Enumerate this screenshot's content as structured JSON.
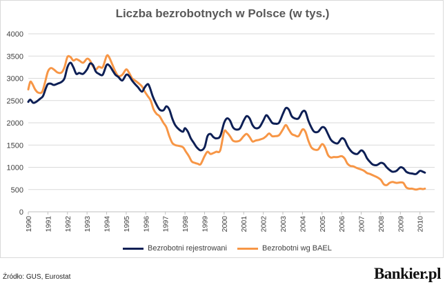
{
  "chart_data": {
    "type": "line",
    "title": "Liczba bezrobotnych w Polsce (w tys.)",
    "xlabel": "",
    "ylabel": "",
    "xlim": [
      1990,
      2010.75
    ],
    "ylim": [
      0,
      4000
    ],
    "y_ticks": [
      "0",
      "500",
      "1000",
      "1500",
      "2000",
      "2500",
      "3000",
      "3500",
      "4000"
    ],
    "x_ticks": [
      "1990",
      "1991",
      "1992",
      "1993",
      "1994",
      "1995",
      "1996",
      "1997",
      "1998",
      "1999",
      "2000",
      "2001",
      "2002",
      "2003",
      "2004",
      "2005",
      "2006",
      "2007",
      "2008",
      "2009",
      "2010"
    ],
    "grid": true,
    "legend_position": "bottom",
    "series": [
      {
        "name": "Bezrobotni rejestrowani",
        "color": "#0d1f55",
        "points": [
          [
            1990.0,
            2470
          ],
          [
            1990.1,
            2520
          ],
          [
            1990.25,
            2450
          ],
          [
            1990.4,
            2470
          ],
          [
            1990.6,
            2540
          ],
          [
            1990.75,
            2600
          ],
          [
            1990.9,
            2780
          ],
          [
            1991.0,
            2870
          ],
          [
            1991.15,
            2880
          ],
          [
            1991.3,
            2850
          ],
          [
            1991.5,
            2880
          ],
          [
            1991.7,
            2920
          ],
          [
            1991.85,
            3000
          ],
          [
            1992.0,
            3250
          ],
          [
            1992.15,
            3350
          ],
          [
            1992.3,
            3250
          ],
          [
            1992.45,
            3100
          ],
          [
            1992.6,
            3120
          ],
          [
            1992.8,
            3100
          ],
          [
            1993.0,
            3200
          ],
          [
            1993.15,
            3330
          ],
          [
            1993.3,
            3300
          ],
          [
            1993.45,
            3150
          ],
          [
            1993.6,
            3100
          ],
          [
            1993.8,
            3080
          ],
          [
            1994.0,
            3300
          ],
          [
            1994.15,
            3280
          ],
          [
            1994.3,
            3180
          ],
          [
            1994.45,
            3080
          ],
          [
            1994.6,
            3030
          ],
          [
            1994.8,
            2950
          ],
          [
            1995.0,
            3080
          ],
          [
            1995.15,
            3050
          ],
          [
            1995.3,
            2950
          ],
          [
            1995.45,
            2870
          ],
          [
            1995.6,
            2800
          ],
          [
            1995.8,
            2700
          ],
          [
            1995.95,
            2800
          ],
          [
            1996.1,
            2870
          ],
          [
            1996.2,
            2800
          ],
          [
            1996.35,
            2600
          ],
          [
            1996.5,
            2450
          ],
          [
            1996.7,
            2300
          ],
          [
            1996.9,
            2280
          ],
          [
            1997.05,
            2370
          ],
          [
            1997.2,
            2300
          ],
          [
            1997.35,
            2100
          ],
          [
            1997.5,
            1950
          ],
          [
            1997.7,
            1850
          ],
          [
            1997.9,
            1800
          ],
          [
            1998.0,
            1880
          ],
          [
            1998.15,
            1800
          ],
          [
            1998.3,
            1650
          ],
          [
            1998.45,
            1550
          ],
          [
            1998.6,
            1450
          ],
          [
            1998.8,
            1380
          ],
          [
            1999.0,
            1450
          ],
          [
            1999.15,
            1700
          ],
          [
            1999.3,
            1750
          ],
          [
            1999.45,
            1680
          ],
          [
            1999.6,
            1650
          ],
          [
            1999.8,
            1700
          ],
          [
            2000.0,
            2000
          ],
          [
            2000.15,
            2100
          ],
          [
            2000.3,
            2050
          ],
          [
            2000.45,
            1900
          ],
          [
            2000.6,
            1850
          ],
          [
            2000.8,
            1870
          ],
          [
            2001.0,
            2050
          ],
          [
            2001.15,
            2150
          ],
          [
            2001.3,
            2100
          ],
          [
            2001.45,
            1950
          ],
          [
            2001.6,
            1880
          ],
          [
            2001.8,
            1900
          ],
          [
            2002.0,
            2050
          ],
          [
            2002.15,
            2170
          ],
          [
            2002.3,
            2100
          ],
          [
            2002.45,
            2000
          ],
          [
            2002.6,
            1980
          ],
          [
            2002.8,
            2000
          ],
          [
            2003.0,
            2200
          ],
          [
            2003.15,
            2330
          ],
          [
            2003.3,
            2300
          ],
          [
            2003.45,
            2150
          ],
          [
            2003.6,
            2100
          ],
          [
            2003.8,
            2100
          ],
          [
            2004.0,
            2250
          ],
          [
            2004.15,
            2250
          ],
          [
            2004.3,
            2050
          ],
          [
            2004.45,
            1900
          ],
          [
            2004.6,
            1800
          ],
          [
            2004.8,
            1800
          ],
          [
            2005.0,
            1900
          ],
          [
            2005.15,
            1880
          ],
          [
            2005.3,
            1750
          ],
          [
            2005.45,
            1620
          ],
          [
            2005.6,
            1560
          ],
          [
            2005.8,
            1540
          ],
          [
            2006.0,
            1650
          ],
          [
            2006.15,
            1620
          ],
          [
            2006.3,
            1480
          ],
          [
            2006.45,
            1380
          ],
          [
            2006.6,
            1320
          ],
          [
            2006.8,
            1300
          ],
          [
            2007.0,
            1380
          ],
          [
            2007.15,
            1330
          ],
          [
            2007.3,
            1200
          ],
          [
            2007.45,
            1120
          ],
          [
            2007.6,
            1060
          ],
          [
            2007.8,
            1050
          ],
          [
            2008.0,
            1100
          ],
          [
            2008.15,
            1080
          ],
          [
            2008.3,
            1000
          ],
          [
            2008.45,
            940
          ],
          [
            2008.6,
            900
          ],
          [
            2008.8,
            920
          ],
          [
            2009.0,
            1000
          ],
          [
            2009.15,
            980
          ],
          [
            2009.3,
            900
          ],
          [
            2009.45,
            870
          ],
          [
            2009.6,
            860
          ],
          [
            2009.8,
            850
          ],
          [
            2010.0,
            920
          ],
          [
            2010.15,
            900
          ],
          [
            2010.25,
            880
          ]
        ]
      },
      {
        "name": "Bezrobotni wg BAEL",
        "color": "#f79646",
        "points": [
          [
            1990.0,
            2750
          ],
          [
            1990.1,
            2920
          ],
          [
            1990.2,
            2880
          ],
          [
            1990.35,
            2750
          ],
          [
            1990.5,
            2680
          ],
          [
            1990.7,
            2690
          ],
          [
            1990.85,
            2900
          ],
          [
            1991.0,
            3150
          ],
          [
            1991.15,
            3230
          ],
          [
            1991.3,
            3200
          ],
          [
            1991.5,
            3130
          ],
          [
            1991.7,
            3130
          ],
          [
            1991.85,
            3250
          ],
          [
            1992.0,
            3480
          ],
          [
            1992.15,
            3480
          ],
          [
            1992.3,
            3400
          ],
          [
            1992.45,
            3430
          ],
          [
            1992.6,
            3400
          ],
          [
            1992.8,
            3350
          ],
          [
            1993.0,
            3440
          ],
          [
            1993.15,
            3400
          ],
          [
            1993.3,
            3270
          ],
          [
            1993.45,
            3200
          ],
          [
            1993.6,
            3260
          ],
          [
            1993.8,
            3250
          ],
          [
            1994.0,
            3500
          ],
          [
            1994.12,
            3480
          ],
          [
            1994.3,
            3300
          ],
          [
            1994.45,
            3150
          ],
          [
            1994.6,
            3050
          ],
          [
            1994.8,
            3080
          ],
          [
            1995.0,
            3200
          ],
          [
            1995.15,
            3120
          ],
          [
            1995.3,
            3000
          ],
          [
            1995.45,
            2950
          ],
          [
            1995.6,
            2900
          ],
          [
            1995.8,
            2820
          ],
          [
            1995.95,
            2700
          ],
          [
            1996.1,
            2600
          ],
          [
            1996.25,
            2500
          ],
          [
            1996.4,
            2300
          ],
          [
            1996.55,
            2200
          ],
          [
            1996.7,
            2150
          ],
          [
            1996.9,
            2000
          ],
          [
            1997.05,
            1900
          ],
          [
            1997.2,
            1700
          ],
          [
            1997.35,
            1550
          ],
          [
            1997.5,
            1500
          ],
          [
            1997.7,
            1480
          ],
          [
            1997.9,
            1450
          ],
          [
            1998.05,
            1350
          ],
          [
            1998.2,
            1250
          ],
          [
            1998.35,
            1130
          ],
          [
            1998.5,
            1100
          ],
          [
            1998.65,
            1080
          ],
          [
            1998.8,
            1070
          ],
          [
            1999.0,
            1250
          ],
          [
            1999.15,
            1350
          ],
          [
            1999.3,
            1300
          ],
          [
            1999.45,
            1320
          ],
          [
            1999.6,
            1350
          ],
          [
            1999.8,
            1380
          ],
          [
            2000.0,
            1800
          ],
          [
            2000.15,
            1780
          ],
          [
            2000.3,
            1700
          ],
          [
            2000.45,
            1600
          ],
          [
            2000.6,
            1580
          ],
          [
            2000.8,
            1600
          ],
          [
            2001.0,
            1700
          ],
          [
            2001.15,
            1750
          ],
          [
            2001.3,
            1680
          ],
          [
            2001.45,
            1580
          ],
          [
            2001.6,
            1600
          ],
          [
            2001.8,
            1620
          ],
          [
            2002.0,
            1650
          ],
          [
            2002.15,
            1700
          ],
          [
            2002.3,
            1760
          ],
          [
            2002.45,
            1700
          ],
          [
            2002.6,
            1700
          ],
          [
            2002.8,
            1720
          ],
          [
            2003.0,
            1850
          ],
          [
            2003.15,
            1950
          ],
          [
            2003.3,
            1850
          ],
          [
            2003.45,
            1750
          ],
          [
            2003.6,
            1720
          ],
          [
            2003.8,
            1700
          ],
          [
            2004.0,
            1850
          ],
          [
            2004.15,
            1800
          ],
          [
            2004.3,
            1600
          ],
          [
            2004.45,
            1450
          ],
          [
            2004.6,
            1400
          ],
          [
            2004.8,
            1400
          ],
          [
            2005.0,
            1520
          ],
          [
            2005.15,
            1450
          ],
          [
            2005.3,
            1280
          ],
          [
            2005.45,
            1220
          ],
          [
            2005.6,
            1230
          ],
          [
            2005.8,
            1230
          ],
          [
            2006.0,
            1250
          ],
          [
            2006.15,
            1200
          ],
          [
            2006.3,
            1080
          ],
          [
            2006.45,
            1030
          ],
          [
            2006.6,
            1020
          ],
          [
            2006.8,
            980
          ],
          [
            2007.0,
            950
          ],
          [
            2007.15,
            920
          ],
          [
            2007.3,
            870
          ],
          [
            2007.45,
            850
          ],
          [
            2007.6,
            820
          ],
          [
            2007.8,
            780
          ],
          [
            2008.0,
            720
          ],
          [
            2008.15,
            620
          ],
          [
            2008.3,
            600
          ],
          [
            2008.45,
            650
          ],
          [
            2008.6,
            670
          ],
          [
            2008.8,
            650
          ],
          [
            2009.0,
            660
          ],
          [
            2009.15,
            650
          ],
          [
            2009.3,
            550
          ],
          [
            2009.45,
            520
          ],
          [
            2009.6,
            520
          ],
          [
            2009.8,
            500
          ],
          [
            2010.0,
            520
          ],
          [
            2010.15,
            510
          ],
          [
            2010.25,
            520
          ]
        ]
      }
    ]
  },
  "legend": {
    "series1_label": "Bezrobotni rejestrowani",
    "series2_label": "Bezrobotni wg BAEL"
  },
  "footer": {
    "source": "Źródło: GUS, Eurostat",
    "brand": "Bankier.pl"
  }
}
